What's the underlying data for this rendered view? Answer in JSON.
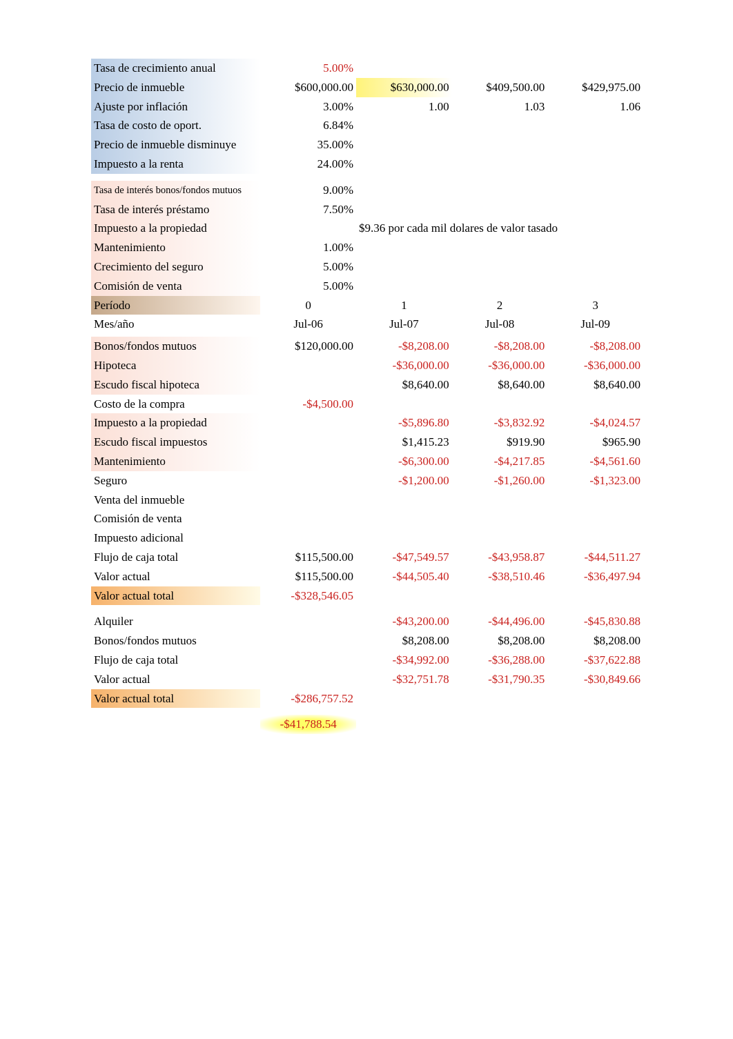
{
  "colors": {
    "positive": "#000000",
    "negative": "#c9211e",
    "grad_blue_start": "#b9cde5",
    "grad_blue_end": "#ffffff",
    "grad_pink_start": "#fbe0d7",
    "grad_pink_end": "#ffffff",
    "grad_brown_start": "#c5a88a",
    "grad_brown_end": "#fef6ee",
    "grad_yellow_start": "#fff37a",
    "grad_yellow_end": "#ffffff",
    "grad_orange_start": "#f6b26b",
    "grad_orange_end": "#fffbe6",
    "glow_yellow_inner": "#ffff66",
    "glow_yellow_outer": "#ffffff"
  },
  "fonts": {
    "body_family": "Liberation Serif",
    "body_size_pt": 12,
    "small_size_pt": 10
  },
  "rows": [
    {
      "label": "Tasa de crecimiento anual",
      "vals": [
        "5.00%",
        "",
        "",
        ""
      ],
      "style": "blue",
      "neg": [
        true,
        false,
        false,
        false
      ]
    },
    {
      "label": "Precio de inmueble",
      "vals": [
        "$600,000.00",
        "$630,000.00",
        "$409,500.00",
        "$429,975.00"
      ],
      "style": "blue",
      "neg": [
        false,
        false,
        false,
        false
      ],
      "cellStyle": [
        "",
        "yellow",
        "",
        ""
      ]
    },
    {
      "label": "Ajuste por inflación",
      "vals": [
        "3.00%",
        "1.00",
        "1.03",
        "1.06"
      ],
      "style": "blue",
      "neg": [
        false,
        false,
        false,
        false
      ]
    },
    {
      "label": "Tasa de costo de oport.",
      "vals": [
        "6.84%",
        "",
        "",
        ""
      ],
      "style": "blue",
      "neg": [
        false,
        false,
        false,
        false
      ]
    },
    {
      "label": "Precio de inmueble disminuye",
      "vals": [
        "35.00%",
        "",
        "",
        ""
      ],
      "style": "blue",
      "neg": [
        false,
        false,
        false,
        false
      ]
    },
    {
      "label": "Impuesto a la renta",
      "vals": [
        "24.00%",
        "",
        "",
        ""
      ],
      "style": "blue",
      "neg": [
        false,
        false,
        false,
        false
      ]
    },
    {
      "type": "spacer"
    },
    {
      "label": "Tasa de interés bonos/fondos mutuos",
      "vals": [
        "9.00%",
        "",
        "",
        ""
      ],
      "style": "pink",
      "neg": [
        false,
        false,
        false,
        false
      ],
      "small": true
    },
    {
      "label": "Tasa de interés préstamo",
      "vals": [
        "7.50%",
        "",
        "",
        ""
      ],
      "style": "pink",
      "neg": [
        false,
        false,
        false,
        false
      ]
    },
    {
      "label": "Impuesto a la propiedad",
      "vals": [
        "",
        "$9.36 por cada mil dolares de valor tasado",
        "",
        ""
      ],
      "style": "pink",
      "neg": [
        false,
        false,
        false,
        false
      ],
      "span": true
    },
    {
      "label": "Mantenimiento",
      "vals": [
        "1.00%",
        "",
        "",
        ""
      ],
      "style": "pink",
      "neg": [
        false,
        false,
        false,
        false
      ]
    },
    {
      "label": "Crecimiento del seguro",
      "vals": [
        "5.00%",
        "",
        "",
        ""
      ],
      "style": "pink",
      "neg": [
        false,
        false,
        false,
        false
      ]
    },
    {
      "label": "Comisión de venta",
      "vals": [
        "5.00%",
        "",
        "",
        ""
      ],
      "style": "pink",
      "neg": [
        false,
        false,
        false,
        false
      ]
    },
    {
      "label": "Período",
      "vals": [
        "0",
        "1",
        "2",
        "3"
      ],
      "style": "brown",
      "neg": [
        false,
        false,
        false,
        false
      ],
      "align": "center"
    },
    {
      "label": "Mes/año",
      "vals": [
        "Jul-06",
        "Jul-07",
        "Jul-08",
        "Jul-09"
      ],
      "style": "none",
      "neg": [
        false,
        false,
        false,
        false
      ],
      "align": "center"
    },
    {
      "type": "halfspacer"
    },
    {
      "label": "Bonos/fondos mutuos",
      "vals": [
        "$120,000.00",
        "-$8,208.00",
        "-$8,208.00",
        "-$8,208.00"
      ],
      "style": "pink",
      "neg": [
        false,
        true,
        true,
        true
      ]
    },
    {
      "label": "Hipoteca",
      "vals": [
        "",
        "-$36,000.00",
        "-$36,000.00",
        "-$36,000.00"
      ],
      "style": "pink",
      "neg": [
        false,
        true,
        true,
        true
      ]
    },
    {
      "label": "Escudo fiscal hipoteca",
      "vals": [
        "",
        "$8,640.00",
        "$8,640.00",
        "$8,640.00"
      ],
      "style": "pink",
      "neg": [
        false,
        false,
        false,
        false
      ]
    },
    {
      "label": "Costo de la compra",
      "vals": [
        "-$4,500.00",
        "",
        "",
        ""
      ],
      "style": "none",
      "neg": [
        true,
        false,
        false,
        false
      ]
    },
    {
      "label": "Impuesto a la propiedad",
      "vals": [
        "",
        "-$5,896.80",
        "-$3,832.92",
        "-$4,024.57"
      ],
      "style": "pink",
      "neg": [
        false,
        true,
        true,
        true
      ]
    },
    {
      "label": "Escudo fiscal impuestos",
      "vals": [
        "",
        "$1,415.23",
        "$919.90",
        "$965.90"
      ],
      "style": "pink",
      "neg": [
        false,
        false,
        false,
        false
      ]
    },
    {
      "label": "Mantenimiento",
      "vals": [
        "",
        "-$6,300.00",
        "-$4,217.85",
        "-$4,561.60"
      ],
      "style": "pink",
      "neg": [
        false,
        true,
        true,
        true
      ]
    },
    {
      "label": "Seguro",
      "vals": [
        "",
        "-$1,200.00",
        "-$1,260.00",
        "-$1,323.00"
      ],
      "style": "none",
      "neg": [
        false,
        true,
        true,
        true
      ]
    },
    {
      "label": "Venta del inmueble",
      "vals": [
        "",
        "",
        "",
        ""
      ],
      "style": "none",
      "neg": [
        false,
        false,
        false,
        false
      ]
    },
    {
      "label": "Comisión de venta",
      "vals": [
        "",
        "",
        "",
        ""
      ],
      "style": "none",
      "neg": [
        false,
        false,
        false,
        false
      ]
    },
    {
      "label": "Impuesto adicional",
      "vals": [
        "",
        "",
        "",
        ""
      ],
      "style": "none",
      "neg": [
        false,
        false,
        false,
        false
      ]
    },
    {
      "label": "Flujo de caja total",
      "vals": [
        "$115,500.00",
        "-$47,549.57",
        "-$43,958.87",
        "-$44,511.27"
      ],
      "style": "none",
      "neg": [
        false,
        true,
        true,
        true
      ]
    },
    {
      "label": "Valor actual",
      "vals": [
        "$115,500.00",
        "-$44,505.40",
        "-$38,510.46",
        "-$36,497.94"
      ],
      "style": "none",
      "neg": [
        false,
        true,
        true,
        true
      ]
    },
    {
      "label": "Valor actual total",
      "vals": [
        "-$328,546.05",
        "",
        "",
        ""
      ],
      "style": "orange",
      "neg": [
        true,
        false,
        false,
        false
      ]
    },
    {
      "type": "spacer"
    },
    {
      "label": "Alquiler",
      "vals": [
        "",
        "-$43,200.00",
        "-$44,496.00",
        "-$45,830.88"
      ],
      "style": "none",
      "neg": [
        false,
        true,
        true,
        true
      ]
    },
    {
      "label": "Bonos/fondos mutuos",
      "vals": [
        "",
        "$8,208.00",
        "$8,208.00",
        "$8,208.00"
      ],
      "style": "none",
      "neg": [
        false,
        false,
        false,
        false
      ]
    },
    {
      "label": "Flujo de caja total",
      "vals": [
        "",
        "-$34,992.00",
        "-$36,288.00",
        "-$37,622.88"
      ],
      "style": "none",
      "neg": [
        false,
        true,
        true,
        true
      ]
    },
    {
      "label": "Valor actual",
      "vals": [
        "",
        "-$32,751.78",
        "-$31,790.35",
        "-$30,849.66"
      ],
      "style": "none",
      "neg": [
        false,
        true,
        true,
        true
      ]
    },
    {
      "label": "Valor actual total",
      "vals": [
        "-$286,757.52",
        "",
        "",
        ""
      ],
      "style": "orange",
      "neg": [
        true,
        false,
        false,
        false
      ]
    },
    {
      "type": "spacer"
    },
    {
      "label": "",
      "vals": [
        "-$41,788.54",
        "",
        "",
        ""
      ],
      "style": "none",
      "neg": [
        true,
        false,
        false,
        false
      ],
      "cellStyle": [
        "glow",
        "",
        "",
        ""
      ]
    }
  ]
}
